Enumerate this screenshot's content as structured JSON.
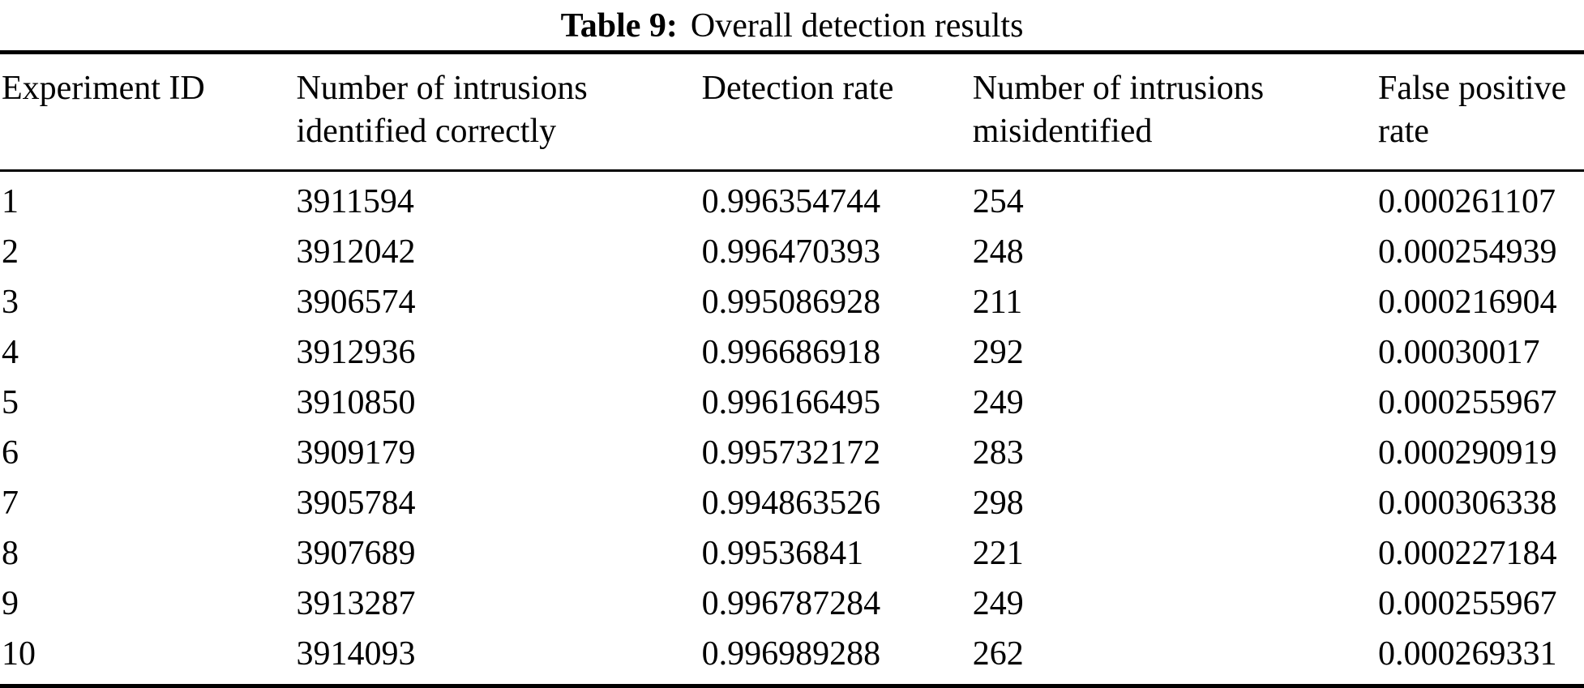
{
  "caption": {
    "label": "Table 9:",
    "text": "Overall detection results"
  },
  "table": {
    "headers": [
      {
        "line1": "Experiment ID",
        "line2": ""
      },
      {
        "line1": "Number of intrusions",
        "line2": "identified correctly"
      },
      {
        "line1": "Detection rate",
        "line2": ""
      },
      {
        "line1": "Number of intrusions",
        "line2": "misidentified"
      },
      {
        "line1": "False positive",
        "line2": "rate"
      }
    ],
    "rows": [
      [
        "1",
        "3911594",
        "0.996354744",
        "254",
        "0.000261107"
      ],
      [
        "2",
        "3912042",
        "0.996470393",
        "248",
        "0.000254939"
      ],
      [
        "3",
        "3906574",
        "0.995086928",
        "211",
        "0.000216904"
      ],
      [
        "4",
        "3912936",
        "0.996686918",
        "292",
        "0.00030017"
      ],
      [
        "5",
        "3910850",
        "0.996166495",
        "249",
        "0.000255967"
      ],
      [
        "6",
        "3909179",
        "0.995732172",
        "283",
        "0.000290919"
      ],
      [
        "7",
        "3905784",
        "0.994863526",
        "298",
        "0.000306338"
      ],
      [
        "8",
        "3907689",
        "0.99536841",
        "221",
        "0.000227184"
      ],
      [
        "9",
        "3913287",
        "0.996787284",
        "249",
        "0.000255967"
      ],
      [
        "10",
        "3914093",
        "0.996989288",
        "262",
        "0.000269331"
      ]
    ]
  },
  "colors": {
    "text": "#000000",
    "background": "#ffffff",
    "rule": "#000000"
  }
}
